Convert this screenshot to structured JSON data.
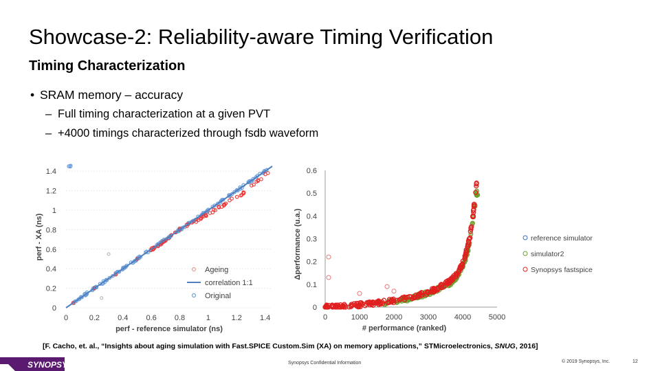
{
  "slide": {
    "title": "Showcase-2: Reliability-aware Timing Verification",
    "subtitle": "Timing Characterization",
    "bullet": "SRAM memory – accuracy",
    "sub_bullets": [
      "Full timing characterization at a given PVT",
      "+4000 timings characterized through fsdb waveform"
    ],
    "citation_main": "[F. Cacho, et. al., “Insights about aging simulation with Fast.SPICE Custom.Sim (XA) on memory applications,” STMicroelectronics, ",
    "citation_italic": "SNUG",
    "citation_end": ", 2016]"
  },
  "footer": {
    "logo_text": "SYNOPSYS",
    "confidential": "Synopsys Confidential Information",
    "copyright": "© 2019 Synopsys, Inc.",
    "page_number": "12"
  },
  "colors": {
    "ageing": "#e8a0a0",
    "correlation": "#4f7fc0",
    "original": "#6fa0d8",
    "reference": "#3a6fbf",
    "simulator2": "#6aa030",
    "fastspice": "#e02020",
    "logo": "#5a1a70"
  },
  "chart_data": [
    {
      "type": "scatter",
      "title": "",
      "xlabel": "perf - reference simulator (ns)",
      "ylabel": "perf - XA (ns)",
      "xlim": [
        0,
        1.45
      ],
      "ylim": [
        0,
        1.45
      ],
      "xticks": [
        "0",
        "0.2",
        "0.4",
        "0.6",
        "0.8",
        "1",
        "1.2",
        "1.4"
      ],
      "yticks": [
        "0",
        "0.2",
        "0.4",
        "0.6",
        "0.8",
        "1",
        "1.2",
        "1.4"
      ],
      "legend_position": "bottom-right",
      "series": [
        {
          "name": "Ageing",
          "kind": "points",
          "x": [
            0.05,
            0.2,
            0.35,
            0.5,
            0.65,
            0.8,
            0.95,
            1.05,
            1.15,
            1.25,
            1.35,
            1.42
          ],
          "y": [
            0.05,
            0.2,
            0.34,
            0.5,
            0.64,
            0.8,
            0.92,
            1.0,
            1.1,
            1.18,
            1.3,
            1.38
          ]
        },
        {
          "name": "correlation 1:1",
          "kind": "line",
          "x": [
            0,
            1.45
          ],
          "y": [
            0,
            1.45
          ]
        },
        {
          "name": "Original",
          "kind": "points",
          "x": [
            0.05,
            0.2,
            0.35,
            0.5,
            0.65,
            0.8,
            0.95,
            1.05,
            1.15,
            1.25,
            1.35,
            1.45
          ],
          "y": [
            0.05,
            0.2,
            0.35,
            0.5,
            0.65,
            0.8,
            0.95,
            1.05,
            1.15,
            1.25,
            1.35,
            1.45
          ]
        }
      ],
      "outliers": [
        {
          "x": 0.3,
          "y": 0.55
        },
        {
          "x": 0.25,
          "y": 0.1
        }
      ]
    },
    {
      "type": "scatter",
      "title": "",
      "xlabel": "# performance (ranked)",
      "ylabel": "Δperformance (u.a.)",
      "xlim": [
        0,
        5000
      ],
      "ylim": [
        0,
        0.6
      ],
      "xticks": [
        "0",
        "1000",
        "2000",
        "3000",
        "4000",
        "5000"
      ],
      "yticks": [
        "0",
        "0.1",
        "0.2",
        "0.3",
        "0.4",
        "0.5",
        "0.6"
      ],
      "legend_position": "right",
      "series": [
        {
          "name": "reference simulator",
          "kind": "points",
          "x": [],
          "y": []
        },
        {
          "name": "simulator2",
          "kind": "points",
          "x": [
            0,
            500,
            1000,
            1500,
            2000,
            2500,
            3000,
            3300,
            3600,
            3800,
            4000,
            4100,
            4200,
            4300,
            4400
          ],
          "y": [
            0,
            0.002,
            0.008,
            0.015,
            0.025,
            0.04,
            0.06,
            0.08,
            0.1,
            0.13,
            0.18,
            0.22,
            0.28,
            0.38,
            0.5
          ]
        },
        {
          "name": "Synopsys fastspice",
          "kind": "points",
          "x": [
            0,
            500,
            1000,
            1500,
            2000,
            2500,
            3000,
            3300,
            3600,
            3800,
            4000,
            4100,
            4200,
            4300,
            4400
          ],
          "y": [
            0,
            0.003,
            0.01,
            0.018,
            0.028,
            0.045,
            0.065,
            0.085,
            0.11,
            0.14,
            0.19,
            0.24,
            0.3,
            0.4,
            0.54
          ]
        }
      ],
      "outliers": [
        {
          "x": 100,
          "y": 0.22
        },
        {
          "x": 100,
          "y": 0.13
        },
        {
          "x": 1000,
          "y": 0.06
        },
        {
          "x": 1800,
          "y": 0.09
        },
        {
          "x": 2000,
          "y": 0.07
        }
      ]
    }
  ]
}
